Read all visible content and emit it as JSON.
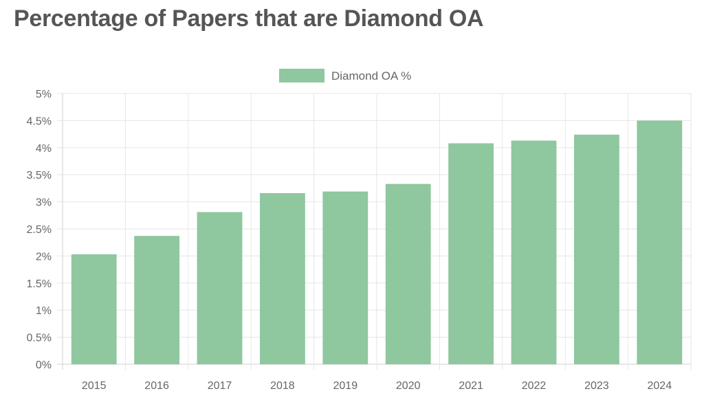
{
  "title": "Percentage of Papers that are Diamond OA",
  "chart_data": {
    "type": "bar",
    "title": "Percentage of Papers that are Diamond OA",
    "categories": [
      "2015",
      "2016",
      "2017",
      "2018",
      "2019",
      "2020",
      "2021",
      "2022",
      "2023",
      "2024"
    ],
    "series": [
      {
        "name": "Diamond OA %",
        "values": [
          2.03,
          2.37,
          2.81,
          3.16,
          3.19,
          3.33,
          4.08,
          4.13,
          4.24,
          4.5
        ],
        "color": "#8fc79f"
      }
    ],
    "ylim": [
      0,
      5
    ],
    "yticks": [
      "0%",
      "0.5%",
      "1%",
      "1.5%",
      "2%",
      "2.5%",
      "3%",
      "3.5%",
      "4%",
      "4.5%",
      "5%"
    ],
    "grid": true,
    "legend": "top-center"
  }
}
